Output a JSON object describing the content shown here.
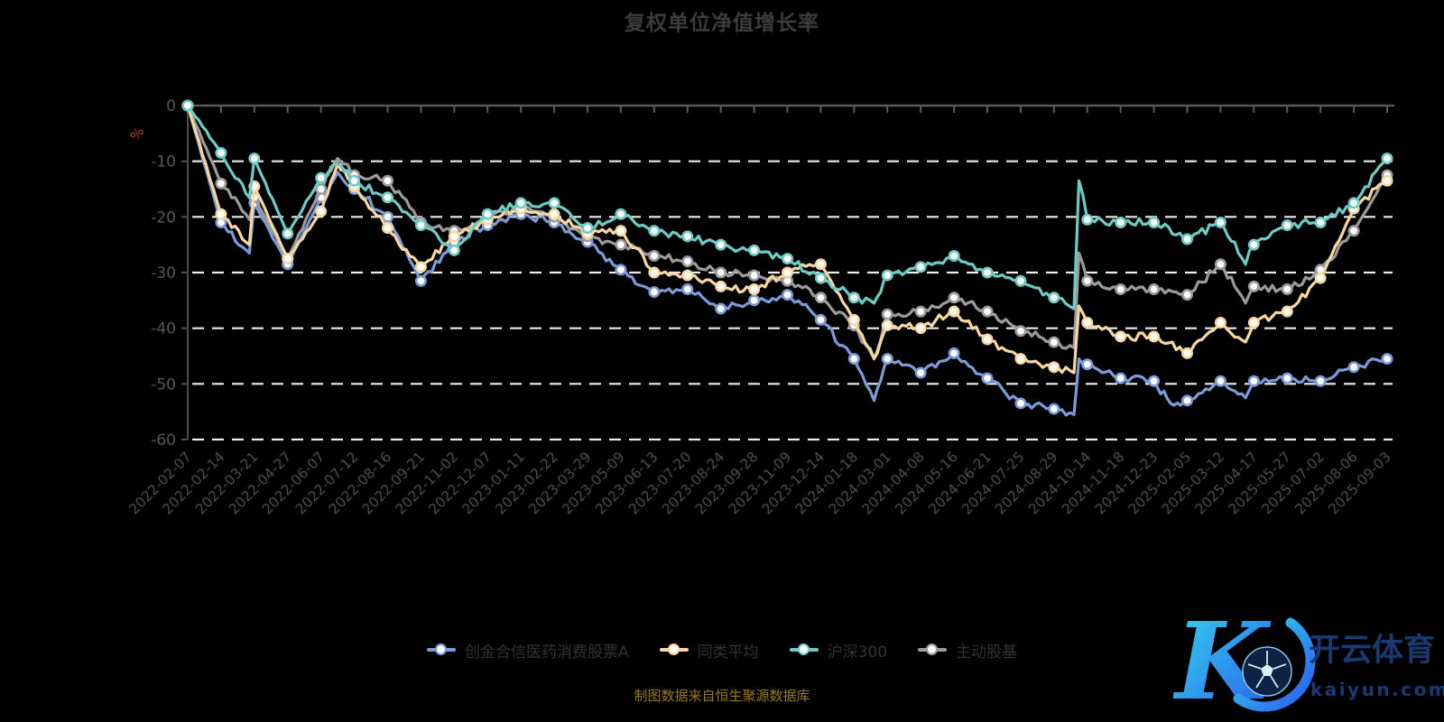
{
  "title": "复权单位净值增长率",
  "footer": "制图数据来自恒生聚源数据库",
  "watermark": {
    "brand": "开云体育",
    "domain": "kaiyun.com",
    "logo": "k-football-icon",
    "gradient_from": "#36d8ec",
    "gradient_to": "#2a5cf0",
    "text_color": "#173a72"
  },
  "y_axis": {
    "name": "%",
    "name_color": "#b03a2e",
    "tick_labels": [
      "0",
      "-10",
      "-20",
      "-30",
      "-40",
      "-50",
      "-60"
    ]
  },
  "x_axis": {
    "tick_labels": [
      "2022-02-07",
      "2022-02-14",
      "2022-03-21",
      "2022-04-27",
      "2022-06-07",
      "2022-07-12",
      "2022-08-16",
      "2022-09-21",
      "2022-11-02",
      "2022-12-07",
      "2023-01-11",
      "2023-02-22",
      "2023-03-29",
      "2023-05-09",
      "2023-06-13",
      "2023-07-20",
      "2023-08-24",
      "2023-09-28",
      "2023-11-09",
      "2023-12-14",
      "2024-01-18",
      "2024-03-01",
      "2024-04-08",
      "2024-05-16",
      "2024-06-21",
      "2024-07-25",
      "2024-08-29",
      "2024-10-14",
      "2024-11-18",
      "2024-12-23",
      "2025-02-05",
      "2025-03-12",
      "2025-04-17",
      "2025-05-27",
      "2025-07-02",
      "2025-08-06",
      "2025-09-03"
    ]
  },
  "legend": [
    {
      "label": "创金合信医药消费股票A",
      "color": "#7b9bd8"
    },
    {
      "label": "同类平均",
      "color": "#f6d7a0"
    },
    {
      "label": "沪深300",
      "color": "#6ecac4"
    },
    {
      "label": "主动股基",
      "color": "#9b9b9b"
    }
  ],
  "chart_data": {
    "type": "line",
    "title": "复权单位净值增长率",
    "xlabel": "",
    "ylabel": "%",
    "ylim": [
      -60,
      0
    ],
    "grid": "horizontal white dashed",
    "legend_position": "bottom",
    "unit": "percent growth of adjusted NAV since start",
    "categories": [
      "2022-02-07",
      "2022-02-14",
      "2022-03-21",
      "2022-04-27",
      "2022-06-07",
      "2022-07-12",
      "2022-08-16",
      "2022-09-21",
      "2022-11-02",
      "2022-12-07",
      "2023-01-11",
      "2023-02-22",
      "2023-03-29",
      "2023-05-09",
      "2023-06-13",
      "2023-07-20",
      "2023-08-24",
      "2023-09-28",
      "2023-11-09",
      "2023-12-14",
      "2024-01-18",
      "2024-03-01",
      "2024-04-08",
      "2024-05-16",
      "2024-06-21",
      "2024-07-25",
      "2024-08-29",
      "2024-10-14",
      "2024-11-18",
      "2024-12-23",
      "2025-02-05",
      "2025-03-12",
      "2025-04-17",
      "2025-05-27",
      "2025-07-02",
      "2025-08-06",
      "2025-09-03"
    ],
    "series": [
      {
        "name": "创金合信医药消费股票A",
        "color": "#7b9bd8",
        "values": [
          0,
          -21,
          -17.5,
          -28.5,
          -16.5,
          -15,
          -20,
          -31.5,
          -24.5,
          -21.5,
          -19.5,
          -21,
          -24.5,
          -29.5,
          -33.5,
          -33,
          -36.5,
          -35,
          -34,
          -38.5,
          -45.5,
          -45.5,
          -48,
          -44.5,
          -49,
          -53.5,
          -54.5,
          -46.5,
          -49,
          -49.5,
          -53,
          -49.5,
          -49.5,
          -49,
          -49.5,
          -47,
          -45.5
        ],
        "extra_points": [
          [
            1.85,
            -26.5
          ],
          [
            4.5,
            -12
          ],
          [
            20.6,
            -53
          ],
          [
            26.6,
            -55.5
          ],
          [
            26.75,
            -45.5
          ],
          [
            29.5,
            -53.5
          ],
          [
            31.75,
            -52.5
          ]
        ]
      },
      {
        "name": "同类平均",
        "color": "#f6d7a0",
        "values": [
          0,
          -19.5,
          -14.5,
          -27.5,
          -19,
          -14.5,
          -22,
          -29,
          -23.5,
          -20.5,
          -18.5,
          -19.5,
          -23,
          -22.5,
          -30,
          -30.5,
          -32.5,
          -33,
          -30,
          -28.5,
          -38.5,
          -39.5,
          -40,
          -37,
          -42,
          -45.5,
          -47,
          -39,
          -41.5,
          -41.5,
          -44.5,
          -39,
          -39,
          -37,
          -31,
          -18.5,
          -13.5
        ],
        "extra_points": [
          [
            1.85,
            -25
          ],
          [
            4.5,
            -10.5
          ],
          [
            20.6,
            -45.5
          ],
          [
            26.6,
            -48
          ],
          [
            26.75,
            -36
          ],
          [
            31.75,
            -42.5
          ]
        ]
      },
      {
        "name": "沪深300",
        "color": "#6ecac4",
        "values": [
          0,
          -8.5,
          -9.5,
          -23,
          -13,
          -13.5,
          -16.5,
          -21.5,
          -26,
          -19.5,
          -17.5,
          -17.5,
          -22,
          -19.5,
          -22.5,
          -23.5,
          -25,
          -26,
          -27.5,
          -31,
          -34.5,
          -30.5,
          -29,
          -27,
          -30,
          -31.5,
          -34.5,
          -20.5,
          -21,
          -21,
          -24,
          -21,
          -25,
          -21.5,
          -21,
          -17.5,
          -9.5
        ],
        "extra_points": [
          [
            1.85,
            -16.5
          ],
          [
            4.5,
            -10.5
          ],
          [
            20.6,
            -35.5
          ],
          [
            26.6,
            -36.5
          ],
          [
            26.75,
            -13.5
          ],
          [
            31.75,
            -28.5
          ]
        ]
      },
      {
        "name": "主动股基",
        "color": "#9b9b9b",
        "values": [
          0,
          -14,
          -16.5,
          -27.5,
          -15,
          -12.5,
          -13.5,
          -21,
          -22.5,
          -20,
          -18,
          -20,
          -23.5,
          -25,
          -27,
          -28,
          -30,
          -30.5,
          -31.5,
          -34.5,
          -39.5,
          -37.5,
          -37,
          -34.5,
          -37,
          -40.5,
          -42.5,
          -31.5,
          -33,
          -33,
          -34,
          -28.5,
          -32.5,
          -33,
          -29.5,
          -22.5,
          -12.5
        ],
        "extra_points": [
          [
            1.85,
            -20.5
          ],
          [
            4.5,
            -9.5
          ],
          [
            20.6,
            -45.5
          ],
          [
            26.6,
            -43.5
          ],
          [
            26.75,
            -26.5
          ],
          [
            31.75,
            -35.5
          ]
        ]
      }
    ]
  }
}
